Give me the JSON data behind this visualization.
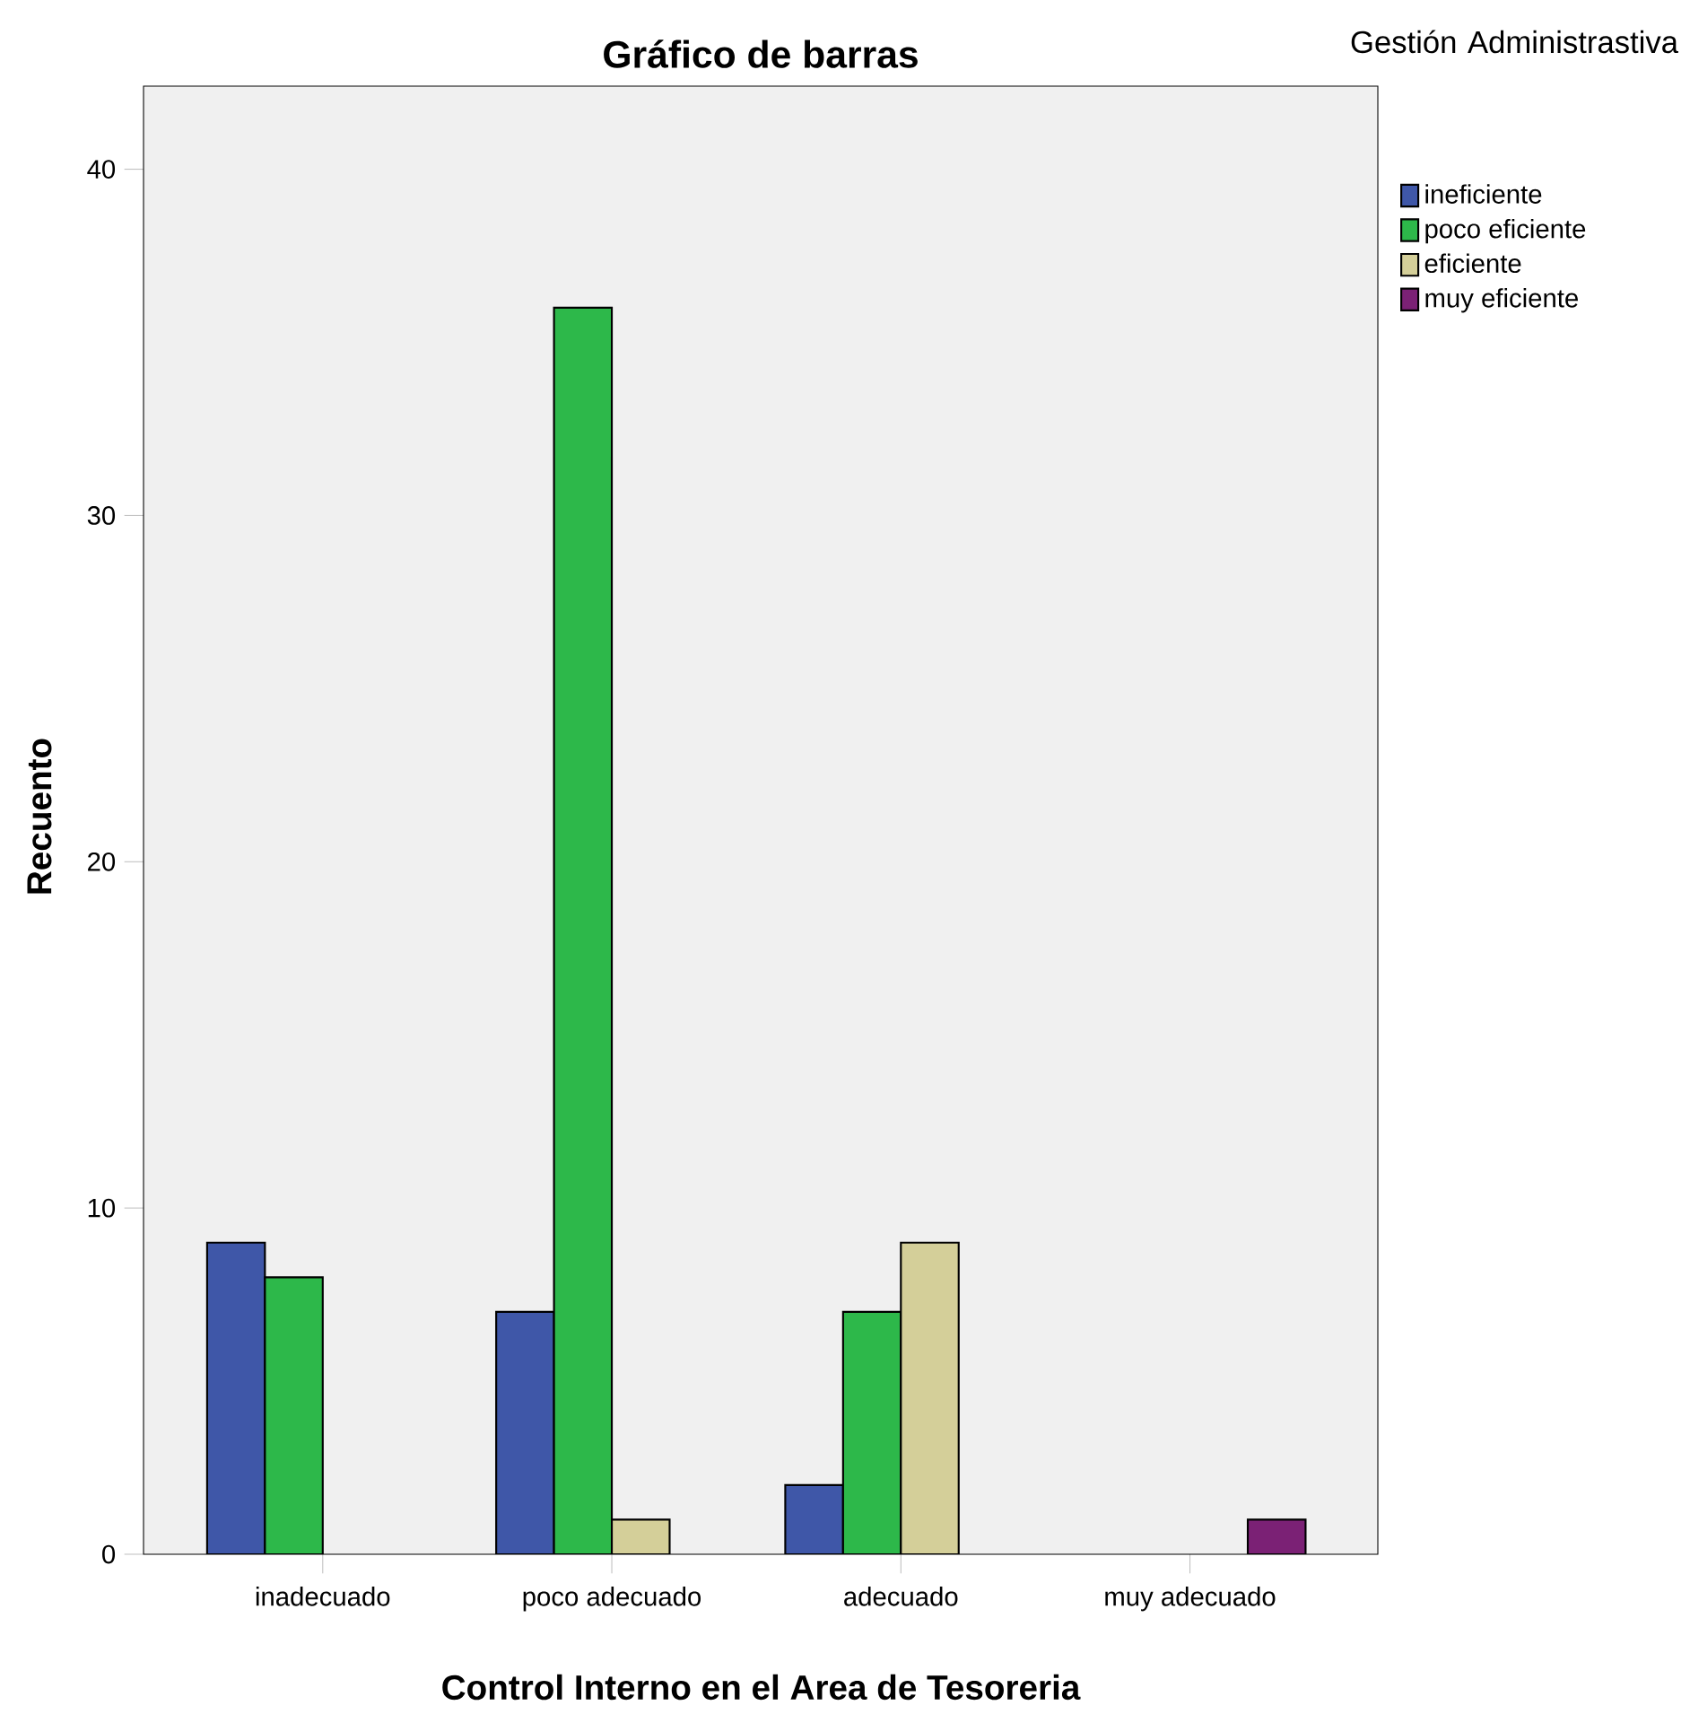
{
  "chart_data": {
    "type": "bar",
    "title": "Gráfico de barras",
    "xlabel": "Control Interno en el Area de Tesoreria",
    "ylabel": "Recuento",
    "legend_title": "Gestión Administrastiva",
    "categories": [
      "inadecuado",
      "poco adecuado",
      "adecuado",
      "muy adecuado"
    ],
    "series": [
      {
        "name": "ineficiente",
        "color": "#3f57a8",
        "values": [
          9,
          7,
          2,
          null
        ]
      },
      {
        "name": "poco eficiente",
        "color": "#2db84a",
        "values": [
          8,
          36,
          7,
          null
        ]
      },
      {
        "name": "eficiente",
        "color": "#d4cf99",
        "values": [
          null,
          1,
          9,
          null
        ]
      },
      {
        "name": "muy eficiente",
        "color": "#7b2175",
        "values": [
          null,
          null,
          null,
          1
        ]
      }
    ],
    "ylim": [
      0,
      42.4
    ],
    "yticks": [
      0,
      10,
      20,
      30,
      40
    ],
    "grid": false,
    "legend": "right"
  }
}
